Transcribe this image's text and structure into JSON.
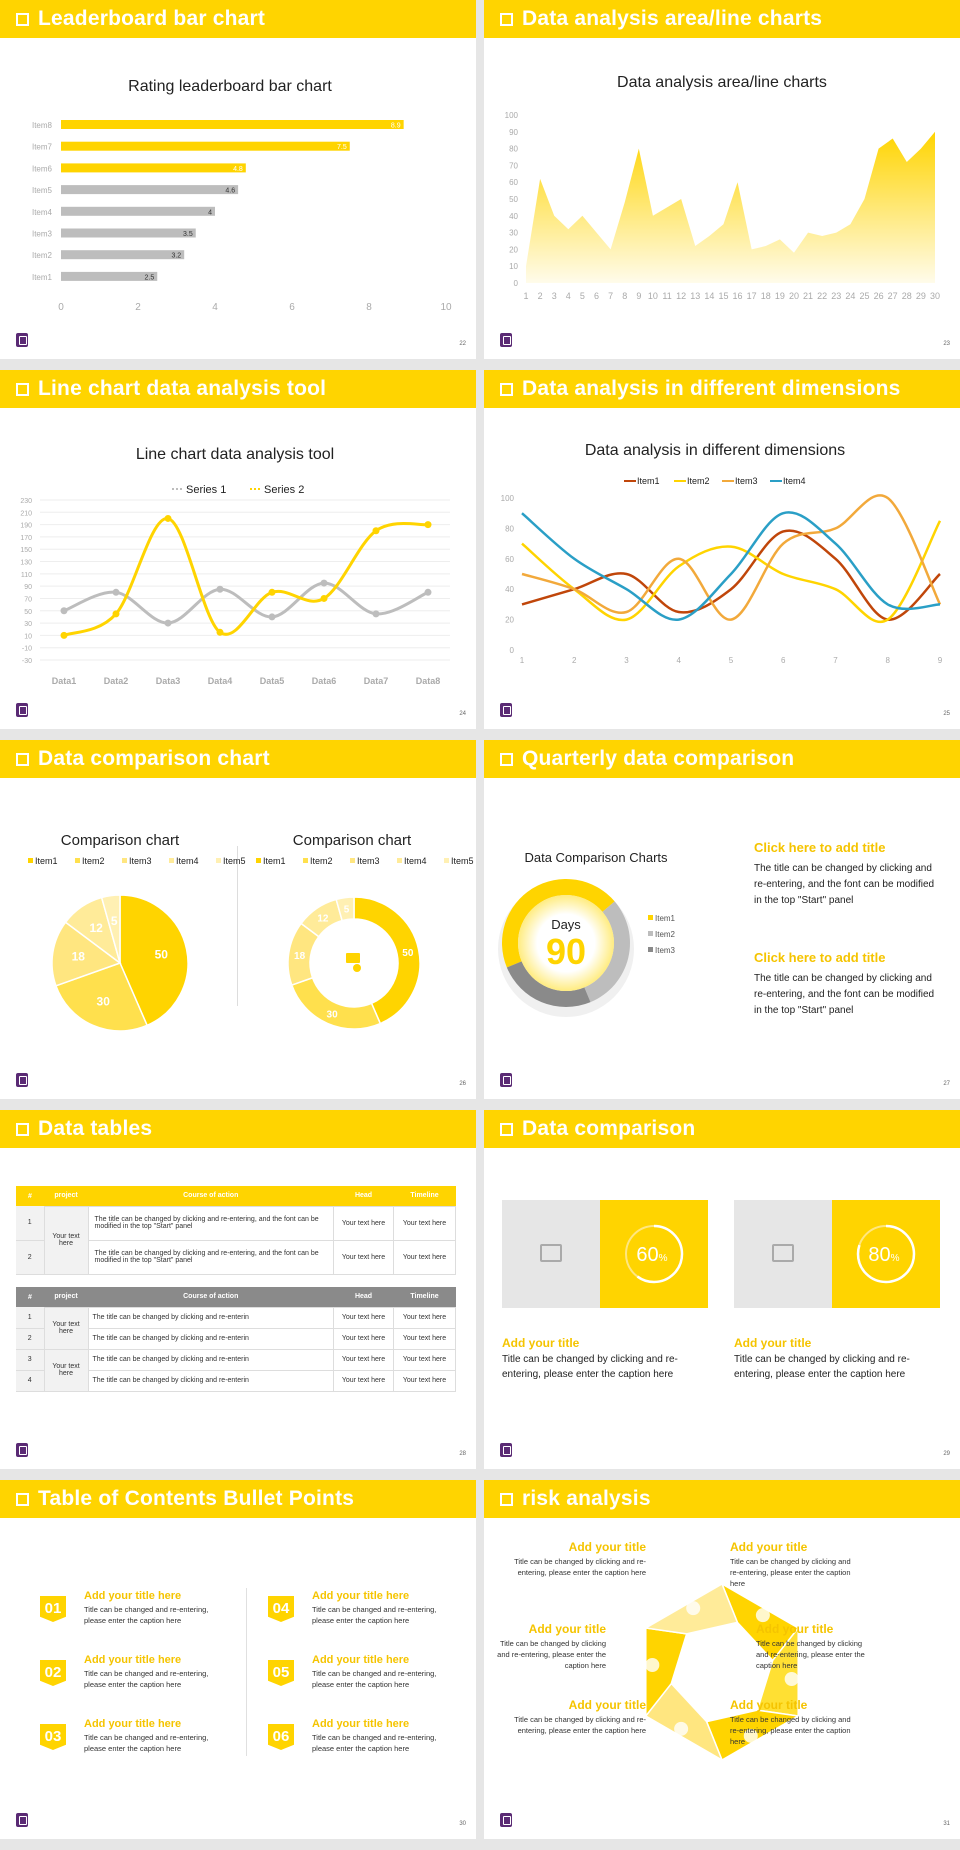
{
  "colors": {
    "accent": "#ffd400",
    "accent_dark": "#f5c400",
    "gray": "#bdbdbd",
    "dark_gray": "#8a8a8a"
  },
  "slides": [
    {
      "title": "Leaderboard bar chart",
      "page": "22"
    },
    {
      "title": "Data analysis area/line charts",
      "page": "23"
    },
    {
      "title": "Line chart data analysis tool",
      "page": "24"
    },
    {
      "title": "Data analysis in different dimensions",
      "page": "25"
    },
    {
      "title": "Data comparison chart",
      "page": "26"
    },
    {
      "title": "Quarterly data comparison",
      "page": "27"
    },
    {
      "title": "Data tables",
      "page": "28"
    },
    {
      "title": "Data comparison",
      "page": "29"
    },
    {
      "title": "Table of Contents Bullet Points",
      "page": "30"
    },
    {
      "title": "risk analysis",
      "page": "31"
    }
  ],
  "chart_data": [
    {
      "type": "bar",
      "orientation": "horizontal",
      "title": "Rating leaderboard bar chart",
      "categories": [
        "Item1",
        "Item2",
        "Item3",
        "Item4",
        "Item5",
        "Item6",
        "Item7",
        "Item8"
      ],
      "values": [
        2.5,
        3.2,
        3.5,
        4,
        4.6,
        4.8,
        7.5,
        8.9
      ],
      "highlight": [
        "Item6",
        "Item7",
        "Item8"
      ],
      "xlim": [
        0,
        10
      ],
      "xticks": [
        0,
        2,
        4,
        6,
        8,
        10
      ]
    },
    {
      "type": "area",
      "title": "Data analysis area/line charts",
      "x": [
        1,
        2,
        3,
        4,
        5,
        6,
        7,
        8,
        9,
        10,
        11,
        12,
        13,
        14,
        15,
        16,
        17,
        18,
        19,
        20,
        21,
        22,
        23,
        24,
        25,
        26,
        27,
        28,
        29,
        30
      ],
      "values": [
        10,
        62,
        40,
        32,
        40,
        30,
        20,
        48,
        80,
        40,
        45,
        50,
        22,
        28,
        35,
        60,
        20,
        22,
        26,
        18,
        30,
        28,
        30,
        35,
        50,
        80,
        86,
        72,
        80,
        90
      ],
      "ylim": [
        0,
        100
      ],
      "yticks": [
        0,
        10,
        20,
        30,
        40,
        50,
        60,
        70,
        80,
        90,
        100
      ]
    },
    {
      "type": "line",
      "title": "Line chart data analysis tool",
      "categories": [
        "Data1",
        "Data2",
        "Data3",
        "Data4",
        "Data5",
        "Data6",
        "Data7",
        "Data8"
      ],
      "series": [
        {
          "name": "Series 1",
          "values": [
            50,
            80,
            30,
            85,
            40,
            95,
            45,
            80
          ]
        },
        {
          "name": "Series 2",
          "values": [
            10,
            45,
            200,
            15,
            80,
            70,
            180,
            190
          ]
        }
      ],
      "ylim": [
        -30,
        230
      ],
      "yticks": [
        -30,
        -10,
        10,
        30,
        50,
        70,
        90,
        110,
        130,
        150,
        170,
        190,
        210,
        230
      ],
      "ytick_labels": [
        "-30",
        "-10",
        "10",
        "30",
        "50",
        "70",
        "90",
        "110",
        "130",
        "150",
        "170",
        "190",
        "210",
        "230"
      ]
    },
    {
      "type": "line",
      "title": "Data analysis in different dimensions",
      "x": [
        1,
        2,
        3,
        4,
        5,
        6,
        7,
        8,
        9
      ],
      "series": [
        {
          "name": "Item1",
          "values": [
            30,
            40,
            50,
            25,
            40,
            78,
            60,
            20,
            50
          ]
        },
        {
          "name": "Item2",
          "values": [
            70,
            40,
            20,
            55,
            68,
            50,
            40,
            20,
            85
          ]
        },
        {
          "name": "Item3",
          "values": [
            50,
            40,
            25,
            60,
            20,
            70,
            80,
            100,
            30
          ]
        },
        {
          "name": "Item4",
          "values": [
            90,
            60,
            40,
            20,
            50,
            90,
            70,
            30,
            30
          ]
        }
      ],
      "ylim": [
        0,
        100
      ],
      "yticks": [
        0,
        20,
        40,
        60,
        80,
        100
      ]
    },
    {
      "type": "pie",
      "title": "Comparison chart",
      "categories": [
        "Item1",
        "Item2",
        "Item3",
        "Item4",
        "Item5"
      ],
      "values": [
        50,
        30,
        18,
        12,
        5
      ]
    },
    {
      "type": "pie",
      "donut": true,
      "title": "Comparison chart",
      "categories": [
        "Item1",
        "Item2",
        "Item3",
        "Item4",
        "Item5"
      ],
      "values": [
        50,
        30,
        18,
        12,
        5
      ]
    },
    {
      "type": "pie",
      "donut": true,
      "title": "Data Comparison Charts",
      "center_label": "Days",
      "center_value": "90",
      "categories": [
        "Item1",
        "Item2",
        "Item3"
      ],
      "values": [
        45,
        30,
        25
      ]
    }
  ],
  "quarterly": {
    "blocks": [
      {
        "title": "Click here to add title",
        "body": "The title can be changed by clicking and re-entering, and the font can be modified in the top \"Start\" panel"
      },
      {
        "title": "Click here to add title",
        "body": "The title can be changed by clicking and re-entering, and the font can be modified in the top \"Start\" panel"
      }
    ]
  },
  "tables": {
    "headers": [
      "#",
      "project",
      "Course of action",
      "Head",
      "Timeline"
    ],
    "t1": {
      "group": "Your text here",
      "rows": [
        {
          "n": "1",
          "action": "The title can be changed by clicking and re-entering, and the font can be modified in the top \"Start\" panel",
          "head": "Your text here",
          "time": "Your text here"
        },
        {
          "n": "2",
          "action": "The title can be changed by clicking and re-entering, and the font can be modified in the top \"Start\" panel",
          "head": "Your text here",
          "time": "Your text here"
        }
      ]
    },
    "t2": {
      "group_a": "Your text here",
      "group_b": "Your text here",
      "rows": [
        {
          "n": "1",
          "action": "The title can be changed by clicking and re-enterin",
          "head": "Your text here",
          "time": "Your text here"
        },
        {
          "n": "2",
          "action": "The title can be changed by clicking and re-enterin",
          "head": "Your text here",
          "time": "Your text here"
        },
        {
          "n": "3",
          "action": "The title can be changed by clicking and re-enterin",
          "head": "Your text here",
          "time": "Your text here"
        },
        {
          "n": "4",
          "action": "The title can be changed by clicking and re-enterin",
          "head": "Your text here",
          "time": "Your text here"
        }
      ]
    }
  },
  "comparison": {
    "cards": [
      {
        "percent": 60,
        "label": "60",
        "suffix": "%",
        "title": "Add your title",
        "body": "Title can be changed by clicking and re-entering, please enter the caption here"
      },
      {
        "percent": 80,
        "label": "80",
        "suffix": "%",
        "title": "Add your title",
        "body": "Title can be changed by clicking and re-entering, please enter the caption here"
      }
    ]
  },
  "toc": {
    "items": [
      {
        "num": "01",
        "title": "Add your title here",
        "body": "Title can be changed and re-entering, please enter the caption here"
      },
      {
        "num": "02",
        "title": "Add your title here",
        "body": "Title can be changed and re-entering, please enter the caption here"
      },
      {
        "num": "03",
        "title": "Add your title here",
        "body": "Title can be changed and re-entering, please enter the caption here"
      },
      {
        "num": "04",
        "title": "Add your title here",
        "body": "Title can be changed and re-entering, please enter the caption here"
      },
      {
        "num": "05",
        "title": "Add your title here",
        "body": "Title can be changed and re-entering, please enter the caption here"
      },
      {
        "num": "06",
        "title": "Add your title here",
        "body": "Title can be changed and re-entering, please enter the caption here"
      }
    ]
  },
  "risk": {
    "items": [
      {
        "title": "Add your title",
        "body": "Title can be changed by clicking and re-entering, please enter the caption here"
      },
      {
        "title": "Add your title",
        "body": "Title can be changed by clicking and re-entering, please enter the caption here"
      },
      {
        "title": "Add your title",
        "body": "Title can be changed by clicking and re-entering, please enter the caption here"
      },
      {
        "title": "Add your title",
        "body": "Title can be changed by clicking and re-entering, please enter the caption here"
      },
      {
        "title": "Add your title",
        "body": "Title can be changed by clicking and re-entering, please enter the caption here"
      },
      {
        "title": "Add your title",
        "body": "Title can be changed by clicking and re-entering, please enter the caption here"
      }
    ],
    "icons": [
      "money-bag-icon",
      "coins-icon",
      "users-icon",
      "pie-chart-icon",
      "building-icon",
      "handshake-icon"
    ]
  }
}
